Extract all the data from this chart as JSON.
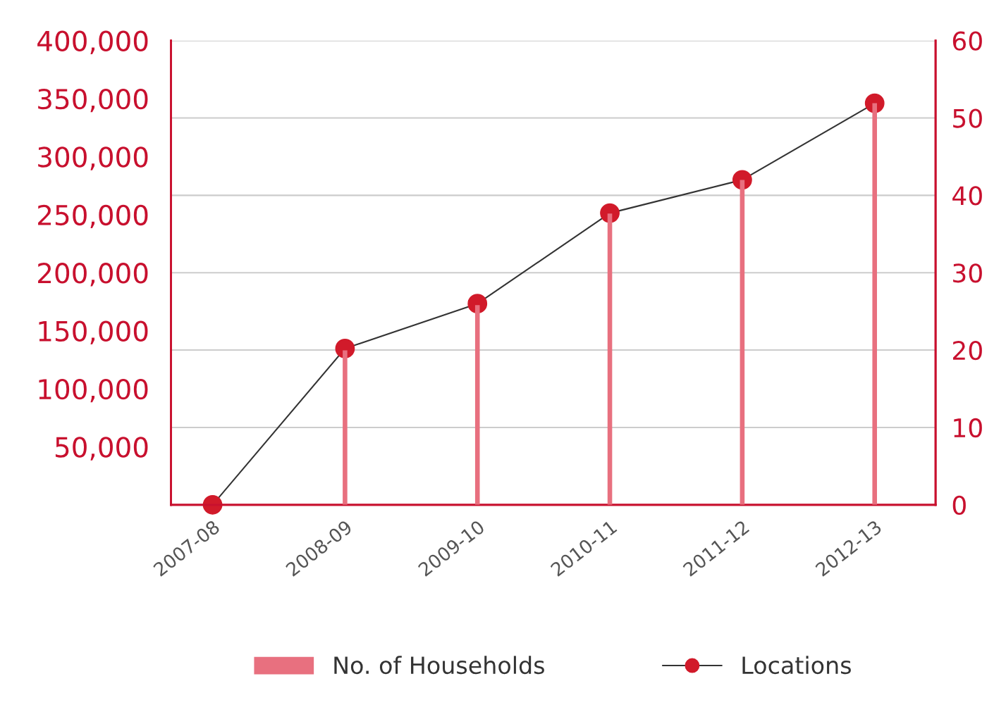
{
  "chart_data": {
    "type": "bar",
    "categories": [
      "2007-08",
      "2008-09",
      "2009-10",
      "2010-11",
      "2011-12",
      "2012-13"
    ],
    "series": [
      {
        "name": "No. of Households",
        "color": "#e8707f",
        "values": [
          0,
          133000,
          172000,
          251000,
          280000,
          346000
        ]
      },
      {
        "name": "Locations",
        "type": "line",
        "axis": "y2",
        "color": "#d11a2a",
        "marker": "circle",
        "values": [
          0,
          20.2,
          26,
          37.7,
          42,
          51.9
        ]
      }
    ],
    "ylim": [
      0,
      400000
    ],
    "yticks": [
      {
        "value": 0,
        "label": null
      },
      {
        "value": 50000,
        "label": "50,000"
      },
      {
        "value": 100000,
        "label": "100,000"
      },
      {
        "value": 150000,
        "label": "150,000"
      },
      {
        "value": 200000,
        "label": "200,000"
      },
      {
        "value": 250000,
        "label": "250,000"
      },
      {
        "value": 300000,
        "label": "300,000"
      },
      {
        "value": 350000,
        "label": "350,000"
      },
      {
        "value": 400000,
        "label": "400,000"
      }
    ],
    "y2lim": [
      0,
      60
    ],
    "y2ticks": [
      0,
      10,
      20,
      30,
      40,
      50,
      60
    ],
    "grid": "y",
    "legend": "bottom"
  }
}
